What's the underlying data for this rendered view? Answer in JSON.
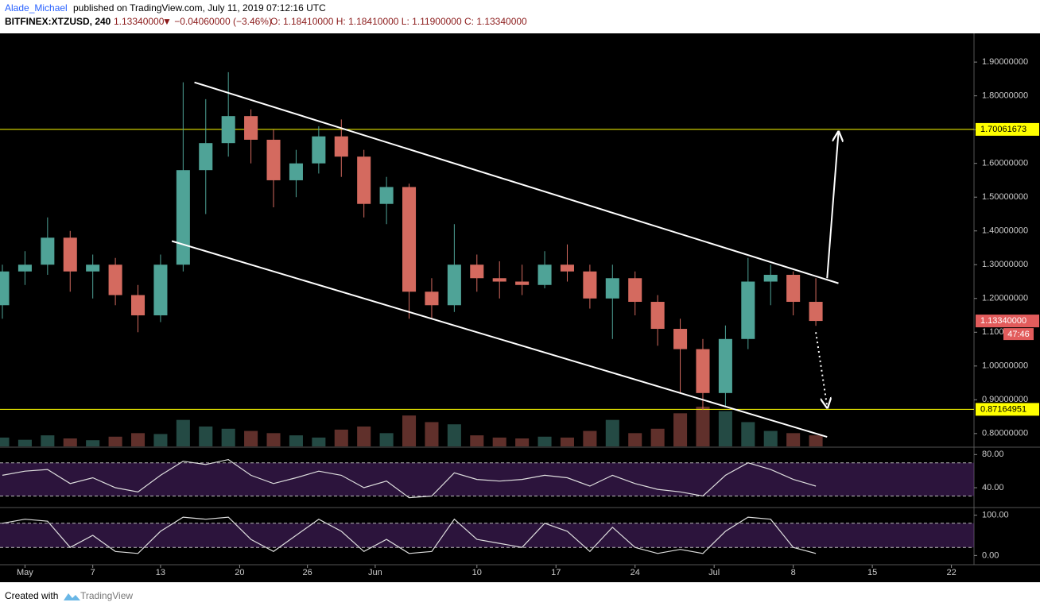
{
  "header": {
    "author": "Alade_Michael",
    "published": "published on TradingView.com, July 11, 2019 07:12:16 UTC",
    "symbol": "BITFINEX:XTZUSD, 240",
    "last": "1.13340000",
    "change": "▼ −0.04060000 (−3.46%)",
    "ohlc": "O: 1.18410000 H: 1.18410000 L: 1.11900000 C: 1.13340000"
  },
  "footer": {
    "created": "Created with",
    "brand": "TradingView"
  },
  "chart_data": {
    "type": "candlestick",
    "x": [
      "2019-04-29",
      "2019-05-01",
      "2019-05-03",
      "2019-05-05",
      "2019-05-07",
      "2019-05-09",
      "2019-05-11",
      "2019-05-13",
      "2019-05-15",
      "2019-05-17",
      "2019-05-19",
      "2019-05-21",
      "2019-05-23",
      "2019-05-25",
      "2019-05-27",
      "2019-05-29",
      "2019-05-31",
      "2019-06-02",
      "2019-06-04",
      "2019-06-06",
      "2019-06-08",
      "2019-06-10",
      "2019-06-12",
      "2019-06-14",
      "2019-06-16",
      "2019-06-18",
      "2019-06-20",
      "2019-06-22",
      "2019-06-24",
      "2019-06-26",
      "2019-06-28",
      "2019-06-30",
      "2019-07-02",
      "2019-07-04",
      "2019-07-06",
      "2019-07-08",
      "2019-07-10"
    ],
    "open": [
      1.18,
      1.28,
      1.3,
      1.38,
      1.28,
      1.3,
      1.21,
      1.15,
      1.3,
      1.58,
      1.66,
      1.74,
      1.67,
      1.55,
      1.6,
      1.68,
      1.62,
      1.48,
      1.53,
      1.22,
      1.18,
      1.3,
      1.26,
      1.25,
      1.24,
      1.3,
      1.28,
      1.2,
      1.26,
      1.19,
      1.11,
      1.05,
      0.92,
      1.08,
      1.25,
      1.27,
      1.19
    ],
    "high": [
      1.3,
      1.34,
      1.44,
      1.4,
      1.33,
      1.32,
      1.24,
      1.33,
      1.84,
      1.79,
      1.87,
      1.76,
      1.7,
      1.64,
      1.71,
      1.73,
      1.64,
      1.56,
      1.54,
      1.26,
      1.42,
      1.33,
      1.31,
      1.3,
      1.34,
      1.36,
      1.3,
      1.3,
      1.28,
      1.21,
      1.14,
      1.08,
      1.12,
      1.32,
      1.3,
      1.28,
      1.26
    ],
    "low": [
      1.14,
      1.24,
      1.27,
      1.22,
      1.2,
      1.18,
      1.1,
      1.13,
      1.28,
      1.45,
      1.62,
      1.6,
      1.47,
      1.5,
      1.57,
      1.56,
      1.44,
      1.42,
      1.14,
      1.14,
      1.16,
      1.22,
      1.2,
      1.21,
      1.23,
      1.25,
      1.17,
      1.08,
      1.15,
      1.06,
      0.92,
      0.87,
      0.88,
      1.05,
      1.18,
      1.15,
      1.119
    ],
    "close": [
      1.28,
      1.3,
      1.38,
      1.28,
      1.3,
      1.21,
      1.15,
      1.3,
      1.58,
      1.66,
      1.74,
      1.67,
      1.55,
      1.6,
      1.68,
      1.62,
      1.48,
      1.53,
      1.22,
      1.18,
      1.3,
      1.26,
      1.25,
      1.24,
      1.3,
      1.28,
      1.2,
      1.26,
      1.19,
      1.11,
      1.05,
      0.92,
      1.08,
      1.25,
      1.27,
      1.19,
      1.1334
    ],
    "volume": [
      20,
      15,
      25,
      18,
      14,
      22,
      30,
      28,
      60,
      45,
      40,
      35,
      30,
      25,
      20,
      38,
      45,
      30,
      70,
      55,
      50,
      25,
      20,
      18,
      22,
      20,
      35,
      60,
      30,
      40,
      75,
      90,
      80,
      55,
      35,
      30,
      25
    ],
    "up_color": "#4fa397",
    "down_color": "#d46a5f",
    "xlim": [
      "2019-04-29",
      "2019-07-24"
    ],
    "xticks": [
      {
        "value": "2019-05-01",
        "label": "May"
      },
      {
        "value": "2019-05-07",
        "label": "7"
      },
      {
        "value": "2019-05-13",
        "label": "13"
      },
      {
        "value": "2019-05-20",
        "label": "20"
      },
      {
        "value": "2019-05-26",
        "label": "26"
      },
      {
        "value": "2019-06-01",
        "label": "Jun"
      },
      {
        "value": "2019-06-10",
        "label": "10"
      },
      {
        "value": "2019-06-17",
        "label": "17"
      },
      {
        "value": "2019-06-24",
        "label": "24"
      },
      {
        "value": "2019-07-01",
        "label": "Jul"
      },
      {
        "value": "2019-07-08",
        "label": "8"
      },
      {
        "value": "2019-07-15",
        "label": "15"
      },
      {
        "value": "2019-07-22",
        "label": "22"
      }
    ],
    "ylim": [
      0.762,
      1.985
    ],
    "yticks": [
      {
        "value": 0.8,
        "label": "0.80000000"
      },
      {
        "value": 0.9,
        "label": "0.90000000"
      },
      {
        "value": 1.0,
        "label": "1.00000000"
      },
      {
        "value": 1.1,
        "label": "1.10000000"
      },
      {
        "value": 1.2,
        "label": "1.20000000"
      },
      {
        "value": 1.3,
        "label": "1.30000000"
      },
      {
        "value": 1.4,
        "label": "1.40000000"
      },
      {
        "value": 1.5,
        "label": "1.50000000"
      },
      {
        "value": 1.6,
        "label": "1.60000000"
      },
      {
        "value": 1.7,
        "label": "1.70000000"
      },
      {
        "value": 1.8,
        "label": "1.80000000"
      },
      {
        "value": 1.9,
        "label": "1.90000000"
      }
    ],
    "levels": [
      {
        "value": 1.70061673,
        "color": "#ffff00"
      },
      {
        "value": 0.87164951,
        "color": "#ffff00"
      }
    ],
    "last_price": {
      "value": 1.1334,
      "label": "1.13340000",
      "countdown": "47:46",
      "color": "#e25c5c"
    },
    "trendlines": [
      {
        "x": [
          "2019-05-16",
          "2019-07-12"
        ],
        "y": [
          1.84,
          1.245
        ]
      },
      {
        "x": [
          "2019-05-14",
          "2019-07-11"
        ],
        "y": [
          1.37,
          0.79
        ]
      }
    ],
    "arrows": [
      {
        "x": [
          "2019-07-11",
          "2019-07-12"
        ],
        "y": [
          1.26,
          1.69
        ],
        "style": "solid"
      },
      {
        "x": [
          "2019-07-10",
          "2019-07-11"
        ],
        "y": [
          1.1,
          0.88
        ],
        "style": "dotted"
      }
    ],
    "indicators": {
      "rsi": {
        "values": [
          55,
          60,
          62,
          45,
          52,
          40,
          35,
          55,
          72,
          68,
          74,
          55,
          45,
          52,
          60,
          55,
          40,
          48,
          28,
          30,
          58,
          50,
          48,
          50,
          55,
          52,
          42,
          55,
          45,
          38,
          35,
          30,
          55,
          70,
          62,
          50,
          42
        ],
        "ylim": [
          18,
          87
        ],
        "yticks": [
          {
            "value": 80,
            "label": "80.00"
          },
          {
            "value": 40,
            "label": "40.00"
          }
        ],
        "bands": [
          30,
          70
        ]
      },
      "stoch": {
        "values": [
          80,
          90,
          85,
          20,
          50,
          10,
          5,
          60,
          95,
          90,
          95,
          40,
          10,
          50,
          90,
          60,
          10,
          40,
          5,
          10,
          90,
          40,
          30,
          20,
          80,
          60,
          10,
          70,
          20,
          5,
          15,
          5,
          60,
          95,
          90,
          20,
          5
        ],
        "ylim": [
          -19,
          115
        ],
        "yticks": [
          {
            "value": 100,
            "label": "100.00"
          },
          {
            "value": 0,
            "label": "0.00"
          }
        ],
        "bands": [
          20,
          80
        ]
      }
    }
  }
}
